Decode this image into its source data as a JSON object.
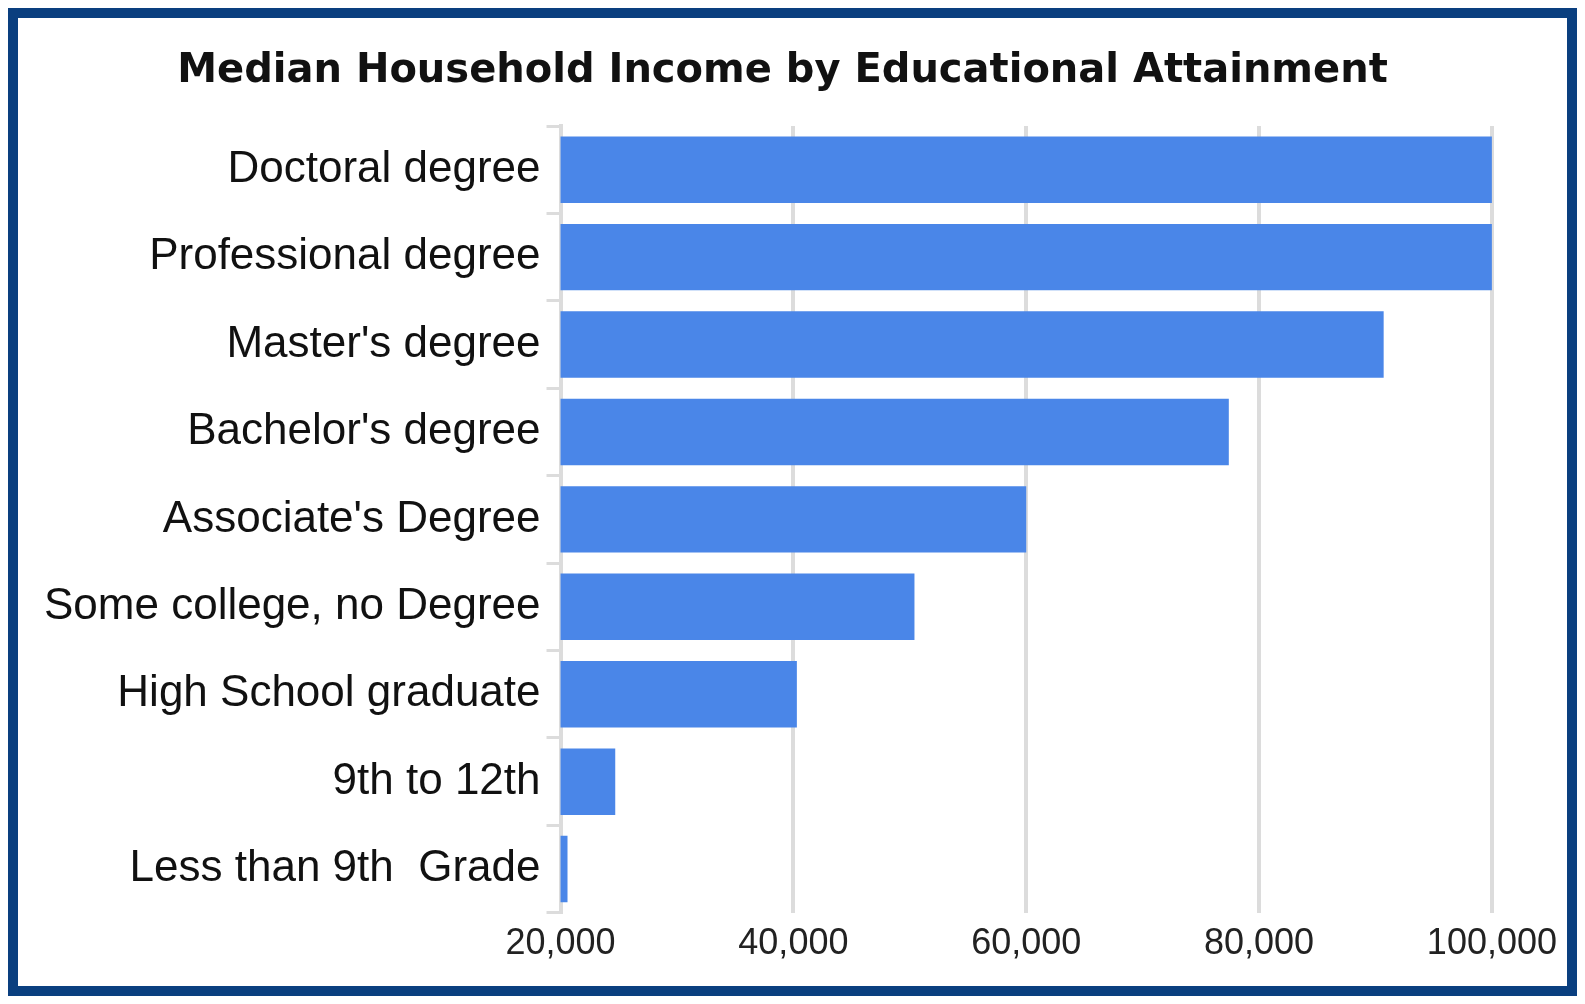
{
  "chart_data": {
    "type": "bar",
    "orientation": "horizontal",
    "title": "Median Household Income by Educational Attainment",
    "categories": [
      "Doctoral degree",
      "Professional degree",
      "Master's degree",
      "Bachelor's degree",
      "Associate's Degree",
      "Some college, no Degree",
      "High School graduate",
      "9th to 12th",
      "Less than 9th  Grade"
    ],
    "values": [
      100000,
      100000,
      90700,
      77400,
      60000,
      50400,
      40300,
      24700,
      20600
    ],
    "color": "#4a86e8",
    "xlim": [
      20000,
      100000
    ],
    "xticks": [
      {
        "value": 20000,
        "label": "20,000"
      },
      {
        "value": 40000,
        "label": "40,000"
      },
      {
        "value": 60000,
        "label": "60,000"
      },
      {
        "value": 80000,
        "label": "80,000"
      },
      {
        "value": 100000,
        "label": "100,000"
      }
    ],
    "grid": "x",
    "legend": false
  }
}
